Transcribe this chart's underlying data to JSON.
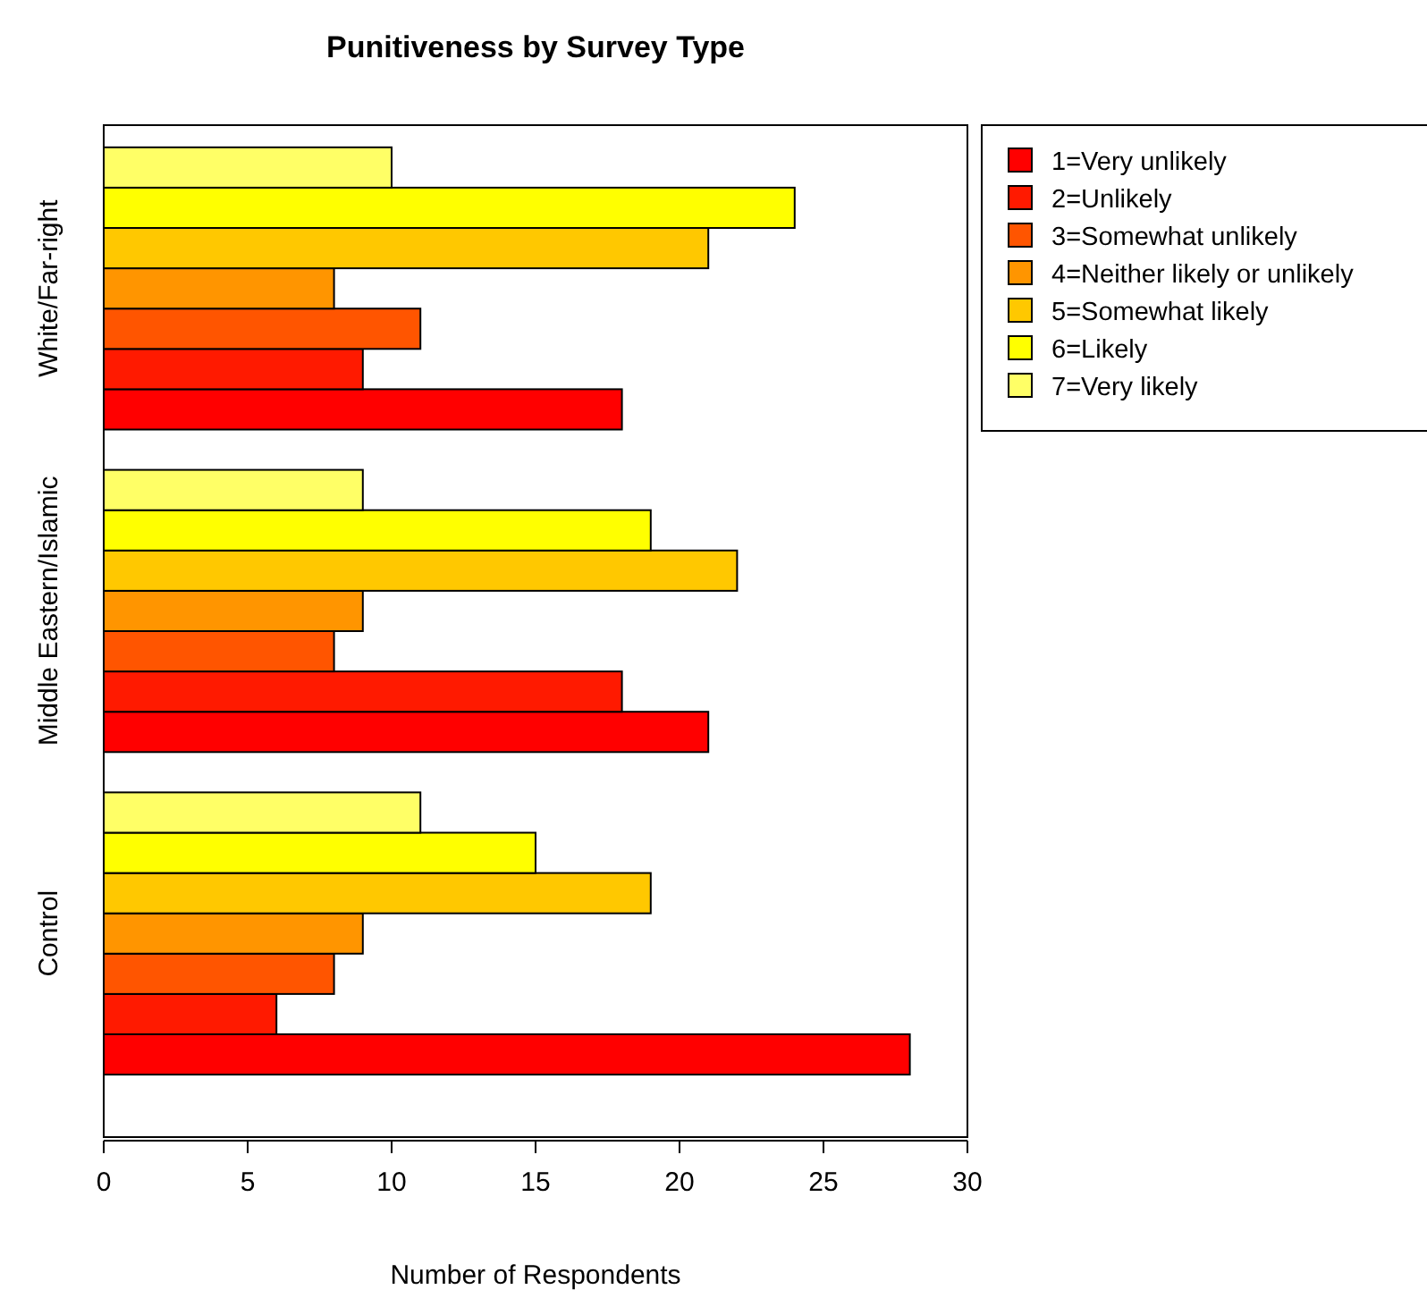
{
  "chart_data": {
    "type": "bar",
    "orientation": "horizontal",
    "title": "Punitiveness by Survey Type",
    "xlabel": "Number of Respondents",
    "categories": [
      "White/Far-right",
      "Middle Eastern/Islamic",
      "Control"
    ],
    "xlim": [
      0,
      30
    ],
    "xticks": [
      0,
      5,
      10,
      15,
      20,
      25,
      30
    ],
    "grid": false,
    "legend": "top right",
    "series": [
      {
        "name": "1=Very unlikely",
        "color": "#ff0000",
        "values": [
          18,
          21,
          28
        ]
      },
      {
        "name": "2=Unlikely",
        "color": "#ff1a00",
        "values": [
          9,
          18,
          6
        ]
      },
      {
        "name": "3=Somewhat unlikely",
        "color": "#ff5500",
        "values": [
          11,
          8,
          8
        ]
      },
      {
        "name": "4=Neither likely or unlikely",
        "color": "#ff9500",
        "values": [
          8,
          9,
          9
        ]
      },
      {
        "name": "5=Somewhat likely",
        "color": "#ffc800",
        "values": [
          21,
          22,
          19
        ]
      },
      {
        "name": "6=Likely",
        "color": "#ffff00",
        "values": [
          24,
          19,
          15
        ]
      },
      {
        "name": "7=Very likely",
        "color": "#ffff66",
        "values": [
          10,
          9,
          11
        ]
      }
    ]
  }
}
